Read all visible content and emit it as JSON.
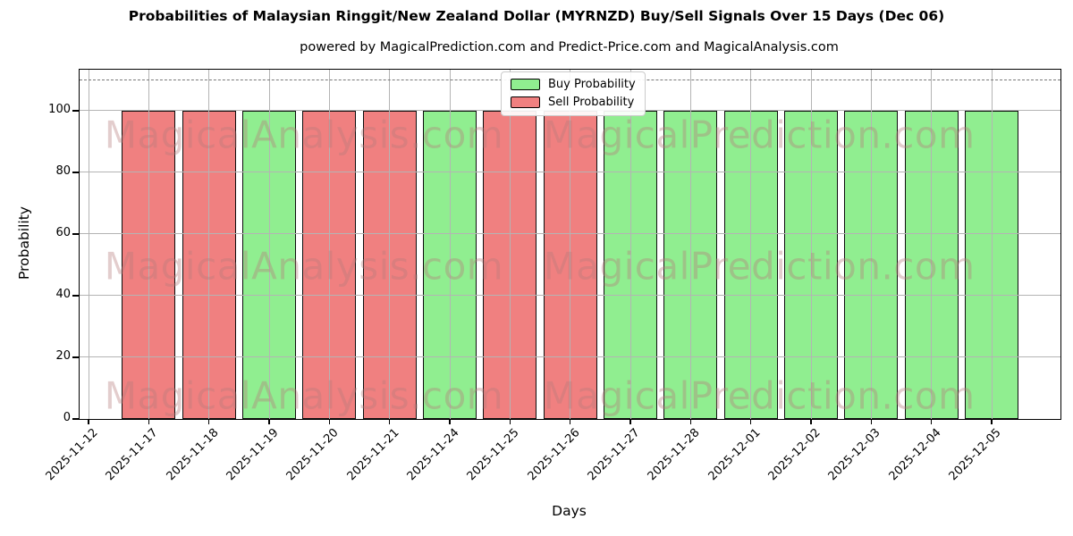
{
  "title": "Probabilities of Malaysian Ringgit/New Zealand Dollar (MYRNZD) Buy/Sell Signals Over 15 Days (Dec 06)",
  "subtitle": "powered by MagicalPrediction.com and Predict-Price.com and MagicalAnalysis.com",
  "watermarks": {
    "left": "MagicalAnalysis.com",
    "right": "MagicalPrediction.com"
  },
  "colors": {
    "buy": "#90ee90",
    "sell": "#f08080",
    "bar_edge": "#0d0d0d",
    "grid": "#b4b4b4",
    "dashed_line": "#787878",
    "background": "#ffffff"
  },
  "chart_data": {
    "type": "bar",
    "title": "Probabilities of Malaysian Ringgit/New Zealand Dollar (MYRNZD) Buy/Sell Signals Over 15 Days (Dec 06)",
    "subtitle": "powered by MagicalPrediction.com and Predict-Price.com and MagicalAnalysis.com",
    "xlabel": "Days",
    "ylabel": "Probability",
    "ylim": [
      0,
      113.3
    ],
    "yticks": [
      0,
      20,
      40,
      60,
      80,
      100
    ],
    "dashed_threshold": 110,
    "grid": true,
    "legend_position": "upper center",
    "x_tick_rotation_deg": 45,
    "categories": [
      "2025-11-12",
      "2025-11-17",
      "2025-11-18",
      "2025-11-19",
      "2025-11-20",
      "2025-11-21",
      "2025-11-24",
      "2025-11-25",
      "2025-11-26",
      "2025-11-27",
      "2025-11-28",
      "2025-12-01",
      "2025-12-02",
      "2025-12-03",
      "2025-12-04",
      "2025-12-05"
    ],
    "series": [
      {
        "name": "Buy Probability",
        "color": "#90ee90",
        "values": [
          null,
          0,
          0,
          100,
          0,
          0,
          100,
          0,
          0,
          100,
          100,
          100,
          100,
          100,
          100,
          100
        ]
      },
      {
        "name": "Sell Probability",
        "color": "#f08080",
        "values": [
          null,
          100,
          100,
          0,
          100,
          100,
          0,
          100,
          100,
          0,
          0,
          0,
          0,
          0,
          0,
          0
        ]
      }
    ]
  }
}
